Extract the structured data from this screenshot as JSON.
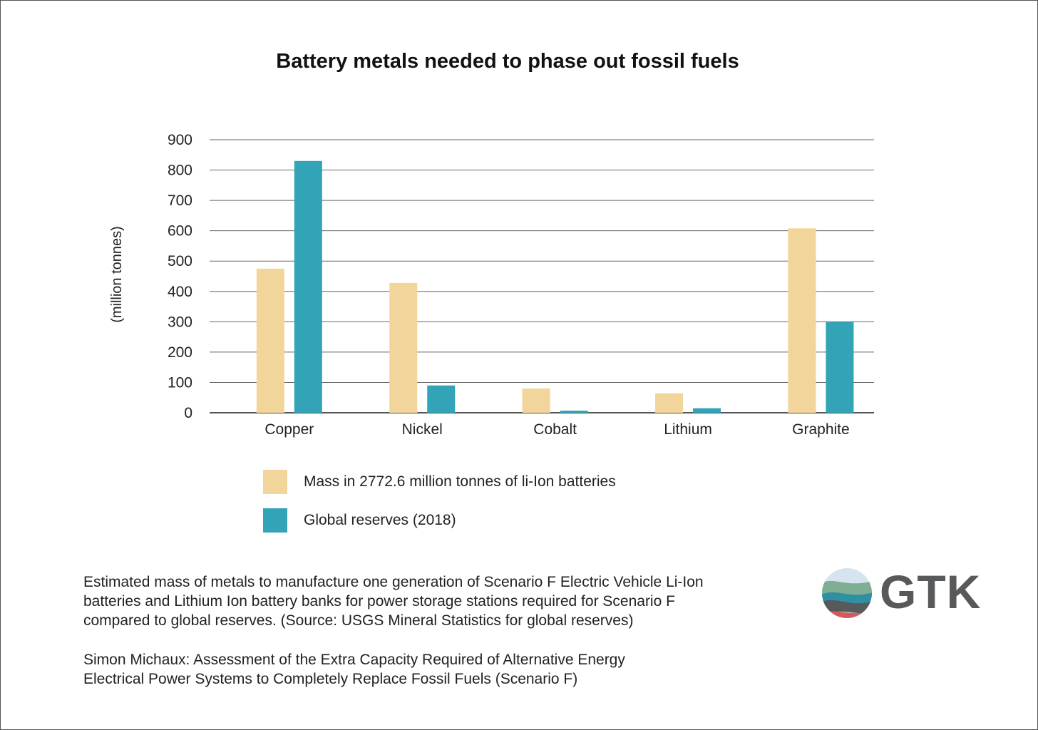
{
  "chart_data": {
    "type": "bar",
    "title": "Battery metals needed to phase out fossil fuels",
    "ylabel": "(million tonnes)",
    "xlabel": "",
    "ylim": [
      0,
      900
    ],
    "yticks": [
      0,
      100,
      200,
      300,
      400,
      500,
      600,
      700,
      800,
      900
    ],
    "categories": [
      "Copper",
      "Nickel",
      "Cobalt",
      "Lithium",
      "Graphite"
    ],
    "series": [
      {
        "name": "Mass in 2772.6 million tonnes of li-Ion batteries",
        "color": "#f2d59b",
        "values": [
          475,
          428,
          80,
          64,
          608
        ]
      },
      {
        "name": "Global reserves (2018)",
        "color": "#33a3b8",
        "values": [
          830,
          90,
          7,
          15,
          300
        ]
      }
    ],
    "grid": true,
    "legend_position": "bottom-left"
  },
  "caption": {
    "line1": "Estimated mass of metals to manufacture one generation of Scenario F Electric Vehicle Li-Ion",
    "line2": "batteries and Lithium Ion battery banks for power storage stations required for Scenario F",
    "line3": "compared to global reserves. (Source: USGS Mineral Statistics for global reserves)",
    "source1": "Simon Michaux: Assessment of the Extra Capacity Required of Alternative Energy",
    "source2": "Electrical Power Systems to Completely Replace Fossil Fuels (Scenario F)"
  },
  "logo": {
    "text": "GTK",
    "colors": {
      "grey": "#58595b",
      "sky": "#d6e4ef",
      "green": "#7fae93",
      "teal": "#2f8fa3",
      "red": "#d25a5a"
    }
  }
}
